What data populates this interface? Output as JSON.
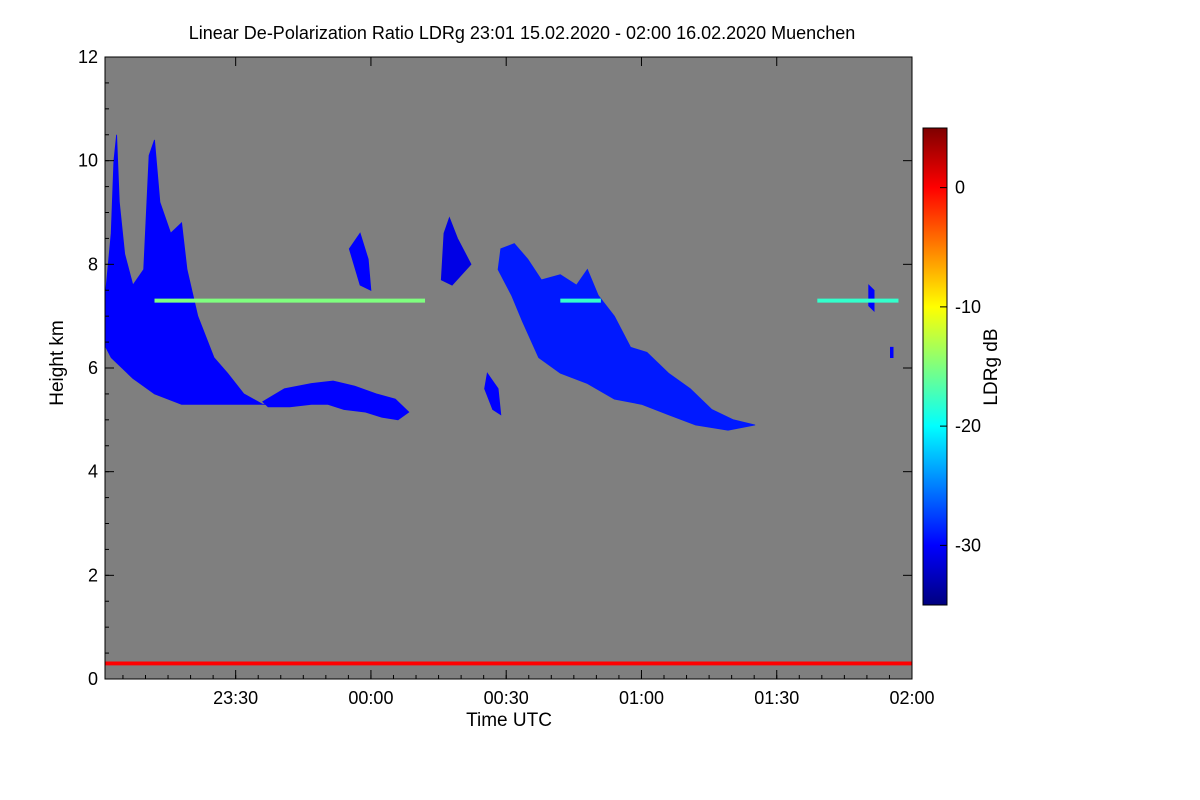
{
  "chart_data": {
    "type": "heatmap",
    "title": "Linear De-Polarization Ratio LDRg   23:01 15.02.2020 - 02:00 16.02.2020 Muenchen",
    "xlabel": "Time UTC",
    "ylabel": "Height km",
    "x_range_hours": [
      23.017,
      26.0
    ],
    "y_range_km": [
      0,
      12
    ],
    "x_ticks": [
      {
        "label": "23:30",
        "value": 23.5
      },
      {
        "label": "00:00",
        "value": 24.0
      },
      {
        "label": "00:30",
        "value": 24.5
      },
      {
        "label": "01:00",
        "value": 25.0
      },
      {
        "label": "01:30",
        "value": 25.5
      },
      {
        "label": "02:00",
        "value": 26.0
      }
    ],
    "y_ticks": [
      0,
      2,
      4,
      6,
      8,
      10,
      12
    ],
    "background_color": "#7f7f7f",
    "colorbar": {
      "label": "LDRg dB",
      "range": [
        -35,
        5
      ],
      "ticks": [
        0,
        -10,
        -20,
        -30
      ],
      "colormap": [
        "#00007f",
        "#0000ff",
        "#007fff",
        "#00ffff",
        "#7fff7f",
        "#ffff00",
        "#ff7f00",
        "#ff0000",
        "#7f0000"
      ]
    },
    "features": [
      {
        "name": "cirrus-fallstreak-1",
        "ldr_db": -30,
        "polygon": [
          [
            23.02,
            7.5
          ],
          [
            23.04,
            8.6
          ],
          [
            23.05,
            10.0
          ],
          [
            23.06,
            10.5
          ],
          [
            23.07,
            9.2
          ],
          [
            23.09,
            8.2
          ],
          [
            23.12,
            7.6
          ],
          [
            23.16,
            7.9
          ],
          [
            23.18,
            10.1
          ],
          [
            23.2,
            10.4
          ],
          [
            23.22,
            9.2
          ],
          [
            23.26,
            8.6
          ],
          [
            23.3,
            8.8
          ],
          [
            23.32,
            7.9
          ],
          [
            23.36,
            7.0
          ],
          [
            23.42,
            6.2
          ],
          [
            23.47,
            5.9
          ],
          [
            23.53,
            5.5
          ],
          [
            23.6,
            5.3
          ],
          [
            23.62,
            5.3
          ],
          [
            23.55,
            5.3
          ],
          [
            23.44,
            5.3
          ],
          [
            23.37,
            5.3
          ],
          [
            23.3,
            5.3
          ],
          [
            23.2,
            5.5
          ],
          [
            23.12,
            5.8
          ],
          [
            23.08,
            6.0
          ],
          [
            23.04,
            6.2
          ],
          [
            23.02,
            6.4
          ]
        ]
      },
      {
        "name": "mid-level-layer-1",
        "ldr_db": -30,
        "polygon": [
          [
            23.6,
            5.35
          ],
          [
            23.68,
            5.6
          ],
          [
            23.78,
            5.7
          ],
          [
            23.86,
            5.75
          ],
          [
            23.94,
            5.65
          ],
          [
            24.02,
            5.5
          ],
          [
            24.09,
            5.4
          ],
          [
            24.14,
            5.15
          ],
          [
            24.1,
            5.0
          ],
          [
            24.04,
            5.05
          ],
          [
            23.98,
            5.15
          ],
          [
            23.9,
            5.2
          ],
          [
            23.84,
            5.3
          ],
          [
            23.78,
            5.3
          ],
          [
            23.7,
            5.25
          ],
          [
            23.62,
            5.25
          ]
        ]
      },
      {
        "name": "cloud-1",
        "ldr_db": -29,
        "polygon": [
          [
            24.47,
            7.9
          ],
          [
            24.48,
            8.3
          ],
          [
            24.53,
            8.4
          ],
          [
            24.58,
            8.1
          ],
          [
            24.63,
            7.7
          ],
          [
            24.7,
            7.8
          ],
          [
            24.76,
            7.6
          ],
          [
            24.8,
            7.9
          ],
          [
            24.84,
            7.4
          ],
          [
            24.9,
            7.0
          ],
          [
            24.96,
            6.4
          ],
          [
            25.02,
            6.3
          ],
          [
            25.1,
            5.9
          ],
          [
            25.18,
            5.6
          ],
          [
            25.26,
            5.2
          ],
          [
            25.34,
            5.0
          ],
          [
            25.42,
            4.9
          ],
          [
            25.32,
            4.8
          ],
          [
            25.2,
            4.9
          ],
          [
            25.1,
            5.1
          ],
          [
            25.0,
            5.3
          ],
          [
            24.9,
            5.4
          ],
          [
            24.8,
            5.7
          ],
          [
            24.7,
            5.9
          ],
          [
            24.62,
            6.2
          ],
          [
            24.56,
            6.9
          ],
          [
            24.52,
            7.4
          ],
          [
            24.49,
            7.7
          ]
        ]
      },
      {
        "name": "small-cloud-1",
        "ldr_db": -31,
        "polygon": [
          [
            24.27,
            8.6
          ],
          [
            24.29,
            8.9
          ],
          [
            24.32,
            8.5
          ],
          [
            24.37,
            8.0
          ],
          [
            24.3,
            7.6
          ],
          [
            24.26,
            7.7
          ]
        ]
      },
      {
        "name": "small-cloud-2",
        "ldr_db": -30,
        "polygon": [
          [
            24.43,
            5.9
          ],
          [
            24.47,
            5.6
          ],
          [
            24.48,
            5.1
          ],
          [
            24.45,
            5.2
          ],
          [
            24.42,
            5.6
          ]
        ]
      },
      {
        "name": "small-cloud-3",
        "ldr_db": -30,
        "polygon": [
          [
            23.92,
            8.3
          ],
          [
            23.96,
            8.6
          ],
          [
            23.99,
            8.1
          ],
          [
            24.0,
            7.5
          ],
          [
            23.96,
            7.6
          ]
        ]
      },
      {
        "name": "small-cloud-4",
        "ldr_db": -30,
        "polygon": [
          [
            25.84,
            7.6
          ],
          [
            25.86,
            7.5
          ],
          [
            25.86,
            7.1
          ],
          [
            25.84,
            7.2
          ]
        ]
      },
      {
        "name": "small-cloud-5",
        "ldr_db": -30,
        "polygon": [
          [
            25.92,
            6.4
          ],
          [
            25.93,
            6.4
          ],
          [
            25.93,
            6.2
          ],
          [
            25.92,
            6.2
          ]
        ]
      },
      {
        "name": "cloud-base-band",
        "ldr_db": 0,
        "polygon": [
          [
            23.02,
            0.33
          ],
          [
            26.0,
            0.33
          ],
          [
            26.0,
            0.27
          ],
          [
            23.02,
            0.27
          ]
        ]
      }
    ],
    "streaks": [
      {
        "name": "mixed-layer-streak-1",
        "y_km": 7.3,
        "x_start": 23.2,
        "x_end": 24.2,
        "ldr_db": -15
      },
      {
        "name": "mixed-layer-streak-2",
        "y_km": 7.3,
        "x_start": 24.7,
        "x_end": 24.85,
        "ldr_db": -18
      },
      {
        "name": "mixed-layer-streak-3",
        "y_km": 7.3,
        "x_start": 25.65,
        "x_end": 25.95,
        "ldr_db": -18
      }
    ]
  }
}
